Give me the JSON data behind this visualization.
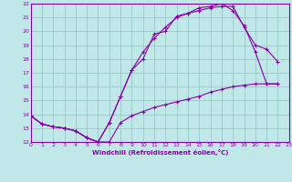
{
  "xlabel": "Windchill (Refroidissement éolien,°C)",
  "bg_color": "#c0e8e8",
  "grid_color": "#98c8c8",
  "line_color": "#8800aa",
  "xlim": [
    0,
    23
  ],
  "ylim": [
    12,
    22
  ],
  "xticks": [
    0,
    1,
    2,
    3,
    4,
    5,
    6,
    7,
    8,
    9,
    10,
    11,
    12,
    13,
    14,
    15,
    16,
    17,
    18,
    19,
    20,
    21,
    22,
    23
  ],
  "yticks": [
    12,
    13,
    14,
    15,
    16,
    17,
    18,
    19,
    20,
    21,
    22
  ],
  "line1_x": [
    0,
    1,
    2,
    3,
    4,
    5,
    6,
    7,
    8,
    9,
    10,
    11,
    12,
    13,
    14,
    15,
    16,
    17,
    18,
    19,
    20,
    21,
    22
  ],
  "line1_y": [
    13.9,
    13.3,
    13.1,
    13.0,
    12.8,
    12.3,
    12.0,
    13.4,
    15.3,
    17.2,
    18.0,
    19.8,
    20.0,
    21.1,
    21.3,
    21.5,
    21.7,
    21.8,
    21.8,
    20.3,
    19.0,
    18.7,
    17.8
  ],
  "line2_x": [
    0,
    1,
    2,
    3,
    4,
    5,
    6,
    7,
    8,
    9,
    10,
    11,
    12,
    13,
    14,
    15,
    16,
    17,
    18,
    19,
    20,
    21,
    22
  ],
  "line2_y": [
    13.9,
    13.3,
    13.1,
    13.0,
    12.8,
    12.3,
    12.0,
    13.4,
    15.3,
    17.2,
    18.5,
    19.5,
    20.3,
    21.0,
    21.3,
    21.7,
    21.8,
    22.0,
    21.5,
    20.4,
    18.5,
    16.2,
    16.2
  ],
  "line3_x": [
    0,
    1,
    2,
    3,
    4,
    5,
    6,
    7,
    8,
    9,
    10,
    11,
    12,
    13,
    14,
    15,
    16,
    17,
    18,
    19,
    20,
    21,
    22
  ],
  "line3_y": [
    13.9,
    13.3,
    13.1,
    13.0,
    12.8,
    12.3,
    12.0,
    12.0,
    13.4,
    13.9,
    14.2,
    14.5,
    14.7,
    14.9,
    15.1,
    15.3,
    15.6,
    15.8,
    16.0,
    16.1,
    16.2,
    16.2,
    16.2
  ]
}
